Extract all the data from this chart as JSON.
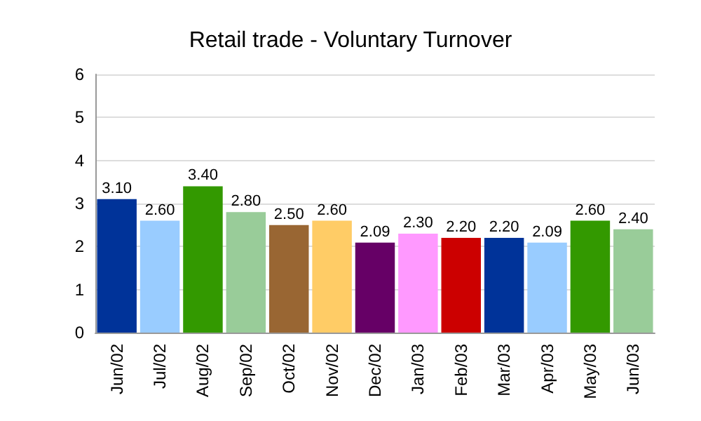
{
  "chart_data": {
    "type": "bar",
    "title": "Retail trade - Voluntary Turnover",
    "categories": [
      "Jun/02",
      "Jul/02",
      "Aug/02",
      "Sep/02",
      "Oct/02",
      "Nov/02",
      "Dec/02",
      "Jan/03",
      "Feb/03",
      "Mar/03",
      "Apr/03",
      "May/03",
      "Jun/03"
    ],
    "values": [
      3.1,
      2.6,
      3.4,
      2.8,
      2.5,
      2.6,
      2.09,
      2.3,
      2.2,
      2.2,
      2.09,
      2.6,
      2.4
    ],
    "value_labels": [
      "3.10",
      "2.60",
      "3.40",
      "2.80",
      "2.50",
      "2.60",
      "2.09",
      "2.30",
      "2.20",
      "2.20",
      "2.09",
      "2.60",
      "2.40"
    ],
    "colors": [
      "#003399",
      "#99ccff",
      "#339900",
      "#99cc99",
      "#996633",
      "#ffcc66",
      "#660066",
      "#ff99ff",
      "#cc0000",
      "#003399",
      "#99ccff",
      "#339900",
      "#99cc99"
    ],
    "ylim": [
      0,
      6
    ],
    "yticks": [
      0,
      1,
      2,
      3,
      4,
      5,
      6
    ],
    "grid": "y"
  }
}
